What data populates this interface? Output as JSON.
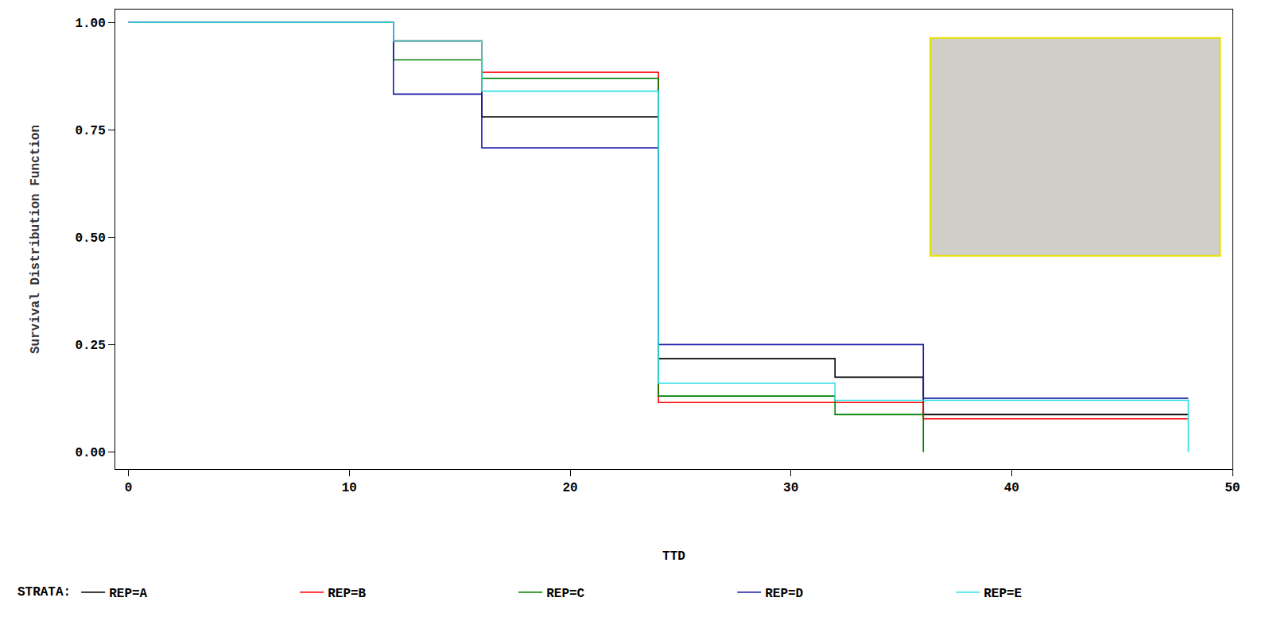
{
  "chart_data": {
    "type": "step",
    "x_label": "TTD",
    "y_label": "Survival Distribution Function",
    "legend_title": "STRATA:",
    "x": [
      0,
      12,
      16,
      24,
      32,
      36,
      48
    ],
    "series": [
      {
        "name": "REP=A",
        "color": "#000000",
        "values": [
          1.0,
          0.957,
          0.78,
          0.217,
          0.174,
          0.087,
          0.087
        ]
      },
      {
        "name": "REP=B",
        "color": "#ff0000",
        "values": [
          1.0,
          0.957,
          0.884,
          0.115,
          0.115,
          0.077,
          0.077
        ]
      },
      {
        "name": "REP=C",
        "color": "#008000",
        "values": [
          1.0,
          0.913,
          0.87,
          0.13,
          0.087,
          0.0,
          null
        ]
      },
      {
        "name": "REP=D",
        "color": "#1a1aa8",
        "values": [
          1.0,
          0.833,
          0.708,
          0.25,
          0.25,
          0.125,
          0.125
        ]
      },
      {
        "name": "REP=E",
        "color": "#30e0e8",
        "values": [
          1.0,
          0.957,
          0.84,
          0.16,
          0.12,
          0.12,
          0.0
        ]
      }
    ],
    "xlim": [
      -0.6,
      50
    ],
    "xticks": [
      0,
      10,
      20,
      30,
      40,
      50
    ],
    "ylim": [
      -0.04,
      1.03
    ],
    "yticks": [
      {
        "value": 0,
        "label": "0.00"
      },
      {
        "value": 0.25,
        "label": "0.25"
      },
      {
        "value": 0.5,
        "label": "0.50"
      },
      {
        "value": 0.75,
        "label": "0.75"
      },
      {
        "value": 1,
        "label": "1.00"
      }
    ],
    "grid": false,
    "legend": "bottom"
  }
}
